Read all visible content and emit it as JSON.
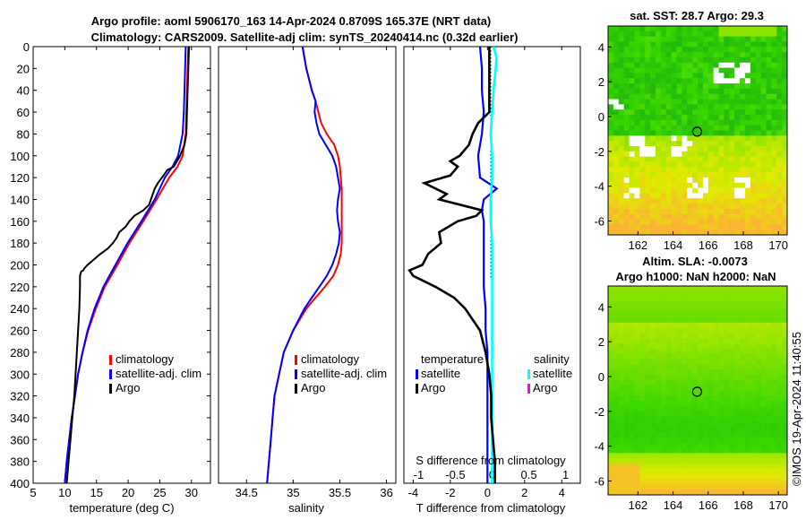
{
  "header": {
    "line1": "Argo profile: aoml 5906170_163 14-Apr-2024 0.8709S 165.37E (NRT data)",
    "line2": "Climatology: CARS2009. Satellite-adj clim: synTS_20240414.nc (0.32d earlier)"
  },
  "colors": {
    "climatology": "#ff0000",
    "satellite": "#0000ff",
    "argo": "#000000",
    "salinity_satellite": "#00ffff",
    "salinity_argo": "#ff00ff"
  },
  "chart_data": [
    {
      "type": "line",
      "id": "temperature",
      "xlabel": "temperature (deg C)",
      "xlim": [
        5,
        33
      ],
      "xticks": [
        5,
        10,
        15,
        20,
        25,
        30
      ],
      "ylim": [
        0,
        400
      ],
      "yticks": [
        0,
        20,
        40,
        60,
        80,
        100,
        120,
        140,
        160,
        180,
        200,
        220,
        240,
        260,
        280,
        300,
        320,
        340,
        360,
        380,
        400
      ],
      "legend": [
        "climatology",
        "satellite-adj. clim",
        "Argo"
      ],
      "series": [
        {
          "name": "climatology",
          "color": "#ff0000",
          "depth": [
            0,
            20,
            40,
            60,
            80,
            100,
            110,
            120,
            140,
            160,
            180,
            200,
            220,
            240,
            260,
            280,
            300,
            320,
            340,
            360,
            380,
            400
          ],
          "values": [
            29.5,
            29.4,
            29.3,
            29.2,
            29.1,
            28.6,
            27.8,
            26.5,
            24.5,
            22.4,
            20.2,
            18.3,
            16.3,
            14.9,
            13.7,
            12.8,
            12.1,
            11.6,
            11.1,
            10.7,
            10.3,
            10.0
          ]
        },
        {
          "name": "satellite-adj. clim",
          "color": "#0000ff",
          "depth": [
            0,
            20,
            40,
            60,
            80,
            100,
            110,
            120,
            140,
            160,
            180,
            200,
            220,
            240,
            260,
            280,
            300,
            320,
            340,
            360,
            380,
            400
          ],
          "values": [
            29.1,
            29.0,
            28.9,
            28.8,
            28.6,
            27.9,
            27.0,
            25.8,
            24.2,
            22.1,
            19.9,
            18.0,
            16.1,
            14.7,
            13.6,
            12.8,
            12.1,
            11.6,
            11.1,
            10.7,
            10.3,
            10.0
          ]
        },
        {
          "name": "Argo",
          "color": "#000000",
          "depth": [
            0,
            20,
            40,
            60,
            80,
            90,
            100,
            110,
            113,
            118,
            125,
            130,
            145,
            150,
            155,
            160,
            165,
            170,
            175,
            180,
            185,
            190,
            195,
            200,
            203,
            205,
            206,
            208,
            210,
            220,
            240,
            260,
            280,
            300,
            320,
            340,
            360,
            380,
            400
          ],
          "values": [
            29.6,
            29.5,
            29.4,
            29.3,
            29.2,
            28.9,
            28.2,
            27.2,
            26.2,
            25.6,
            24.7,
            24.2,
            23.3,
            22.4,
            21.0,
            20.2,
            19.6,
            18.6,
            18.2,
            17.6,
            16.8,
            15.6,
            14.6,
            13.6,
            13.1,
            12.9,
            12.6,
            12.5,
            12.4,
            12.4,
            12.3,
            12.1,
            11.9,
            11.7,
            11.5,
            11.2,
            10.9,
            10.6,
            10.3
          ]
        }
      ]
    },
    {
      "type": "line",
      "id": "salinity",
      "xlabel": "salinity",
      "xlim": [
        34.2,
        36.1
      ],
      "xticks": [
        34.5,
        35,
        35.5,
        36
      ],
      "ylim": [
        0,
        400
      ],
      "legend": [
        "climatology",
        "satellite-adj. clim",
        "Argo"
      ],
      "series": [
        {
          "name": "climatology",
          "color": "#ff0000",
          "depth": [
            0,
            10,
            20,
            30,
            40,
            50,
            60,
            70,
            80,
            90,
            100,
            110,
            120,
            130,
            140,
            150,
            160,
            170,
            180,
            190,
            200,
            210,
            220,
            230,
            240,
            260,
            280,
            300,
            320,
            340,
            360,
            380,
            400
          ],
          "values": [
            35.1,
            35.12,
            35.14,
            35.17,
            35.2,
            35.24,
            35.27,
            35.3,
            35.36,
            35.44,
            35.48,
            35.5,
            35.51,
            35.52,
            35.52,
            35.52,
            35.52,
            35.52,
            35.52,
            35.51,
            35.48,
            35.43,
            35.34,
            35.24,
            35.14,
            35.0,
            34.9,
            34.85,
            34.8,
            34.78,
            34.76,
            34.74,
            34.72
          ]
        },
        {
          "name": "satellite-adj. clim",
          "color": "#0000ff",
          "depth": [
            0,
            10,
            20,
            30,
            40,
            50,
            60,
            70,
            80,
            90,
            100,
            110,
            120,
            130,
            140,
            150,
            160,
            170,
            180,
            190,
            200,
            210,
            220,
            230,
            240,
            260,
            280,
            300,
            320,
            340,
            360,
            380,
            400
          ],
          "values": [
            35.1,
            35.12,
            35.14,
            35.17,
            35.2,
            35.24,
            35.23,
            35.25,
            35.28,
            35.35,
            35.42,
            35.46,
            35.48,
            35.5,
            35.48,
            35.47,
            35.48,
            35.5,
            35.49,
            35.46,
            35.42,
            35.36,
            35.28,
            35.2,
            35.12,
            35.0,
            34.9,
            34.85,
            34.8,
            34.78,
            34.76,
            34.74,
            34.72
          ]
        }
      ]
    },
    {
      "type": "line",
      "id": "difference",
      "xlabel": "T difference from climatology",
      "xlim": [
        -4.5,
        5.0
      ],
      "xticks": [
        -4,
        -2,
        0,
        2,
        4
      ],
      "top_axis_label": "S difference from climatology",
      "top_xticks": [
        -1,
        -0.5,
        0,
        0.5,
        1
      ],
      "top_xlim": [
        -1.2,
        1.2
      ],
      "ylim": [
        0,
        400
      ],
      "legend_t_title": "temperature",
      "legend_s_title": "salinity",
      "legend_t": [
        "satellite",
        "Argo"
      ],
      "legend_s": [
        "satellite",
        "Argo"
      ],
      "series": [
        {
          "name": "T satellite",
          "color": "#0000ff",
          "depth": [
            0,
            20,
            40,
            60,
            80,
            100,
            120,
            130,
            140,
            150,
            160,
            180,
            200,
            220,
            240,
            260,
            280,
            300,
            320,
            340,
            360,
            380,
            400
          ],
          "values": [
            -0.4,
            -0.3,
            -0.3,
            -0.2,
            -0.3,
            -0.5,
            -0.4,
            0.5,
            -0.2,
            -0.3,
            -0.2,
            -0.2,
            -0.2,
            -0.2,
            -0.1,
            -0.1,
            0.0,
            0.0,
            0.0,
            0.0,
            0.0,
            0.0,
            0.0
          ]
        },
        {
          "name": "T Argo",
          "color": "#000000",
          "depth": [
            0,
            20,
            40,
            60,
            70,
            80,
            90,
            100,
            105,
            110,
            118,
            125,
            130,
            135,
            140,
            150,
            155,
            160,
            170,
            180,
            190,
            200,
            205,
            210,
            220,
            230,
            240,
            260,
            280,
            300,
            320,
            340,
            360,
            380,
            400
          ],
          "values": [
            0.1,
            0.1,
            0.1,
            0.1,
            -0.5,
            -0.8,
            -1.0,
            -1.5,
            -2.0,
            -1.6,
            -2.0,
            -3.4,
            -2.8,
            -2.2,
            -2.6,
            -0.3,
            -0.6,
            -1.6,
            -2.6,
            -2.5,
            -3.2,
            -3.5,
            -4.2,
            -4.0,
            -2.8,
            -1.8,
            -1.2,
            -0.4,
            -0.1,
            0.1,
            0.2,
            0.2,
            0.3,
            0.4,
            0.4
          ]
        },
        {
          "name": "S satellite",
          "color": "#00ffff",
          "depth": [
            0,
            10,
            20,
            40,
            60,
            80,
            100,
            120,
            140,
            160,
            180,
            200,
            220,
            240,
            260,
            280,
            300,
            320,
            340,
            360,
            380,
            400
          ],
          "values": [
            0.02,
            0.06,
            0.05,
            0.02,
            0.0,
            -0.02,
            0.0,
            0.0,
            -0.02,
            -0.02,
            0.0,
            0.0,
            0.0,
            0.0,
            0.0,
            0.0,
            0.0,
            0.0,
            0.0,
            0.0,
            0.0,
            0.0
          ]
        }
      ]
    }
  ],
  "maps": {
    "sst": {
      "title": "sat. SST: 28.7 Argo: 29.3",
      "xticks": [
        162,
        164,
        166,
        168,
        170
      ],
      "yticks": [
        4,
        2,
        0,
        -2,
        -4,
        -6
      ],
      "xlim": [
        160.3,
        170.5
      ],
      "ylim": [
        -6.8,
        5.2
      ],
      "marker": [
        165.37,
        -0.87
      ]
    },
    "sla": {
      "title1": "Altim. SLA: -0.0073",
      "title2": "Argo h1000: NaN h2000: NaN",
      "xticks": [
        162,
        164,
        166,
        168,
        170
      ],
      "yticks": [
        4,
        2,
        0,
        -2,
        -4,
        -6
      ],
      "xlim": [
        160.3,
        170.5
      ],
      "ylim": [
        -6.8,
        5.2
      ],
      "marker": [
        165.37,
        -0.87
      ]
    }
  },
  "credit": "©IMOS 19-Apr-2024 11:40:55"
}
